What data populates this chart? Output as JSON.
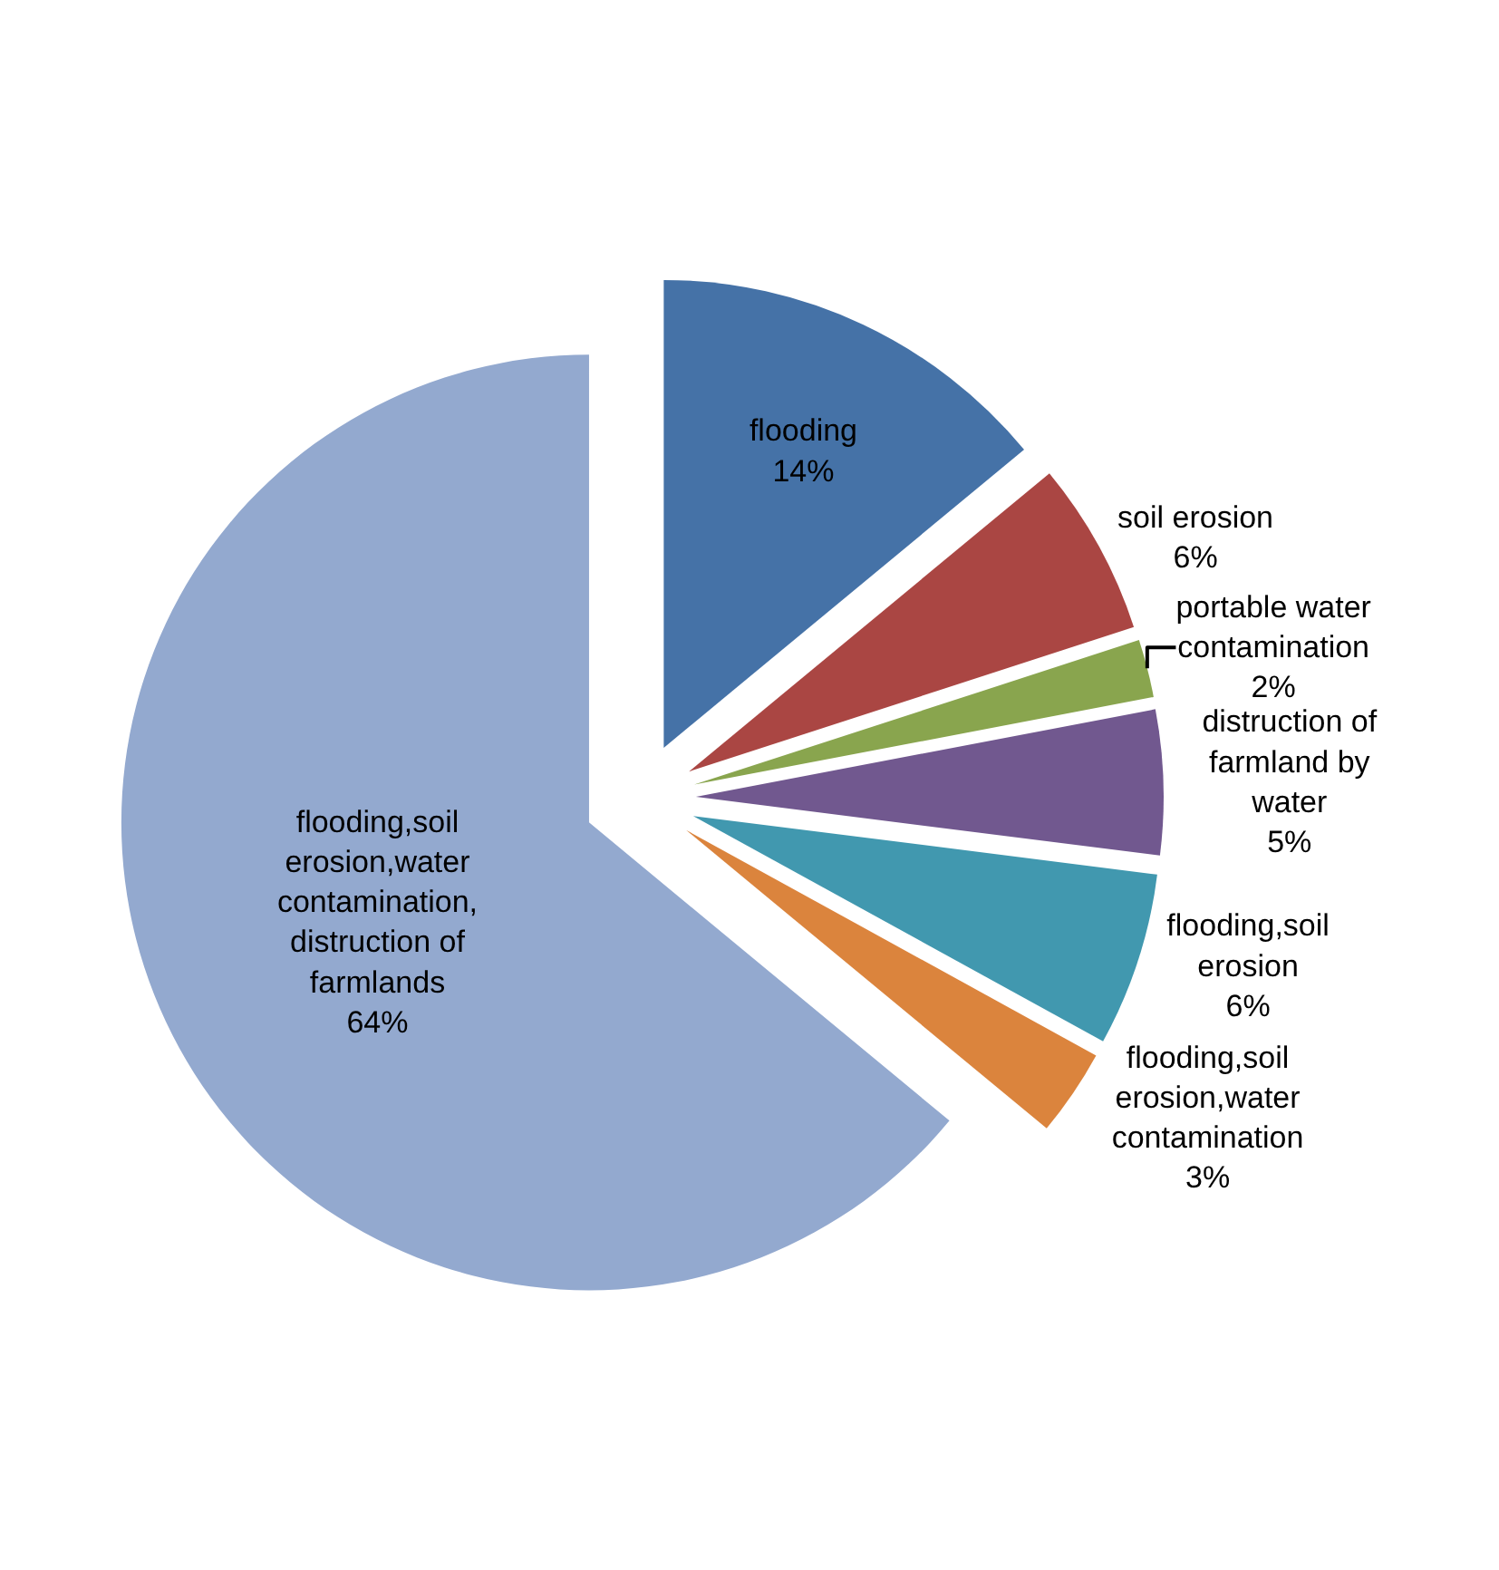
{
  "chart_data": {
    "type": "pie",
    "categories": [
      "flooding",
      "soil erosion",
      "portable water contamination",
      "distruction of farmland by water",
      "flooding,soil erosion",
      "flooding,soil erosion,water contamination",
      "flooding,soil erosion,water contamination,distruction of farmlands"
    ],
    "values": [
      14,
      6,
      2,
      5,
      6,
      3,
      64
    ],
    "value_labels": [
      "14%",
      "6%",
      "2%",
      "5%",
      "6%",
      "3%",
      "64%"
    ],
    "colors": [
      "#4572a7",
      "#aa4643",
      "#89a54e",
      "#71588f",
      "#4198af",
      "#db843d",
      "#93a9cf"
    ],
    "legend": false
  }
}
